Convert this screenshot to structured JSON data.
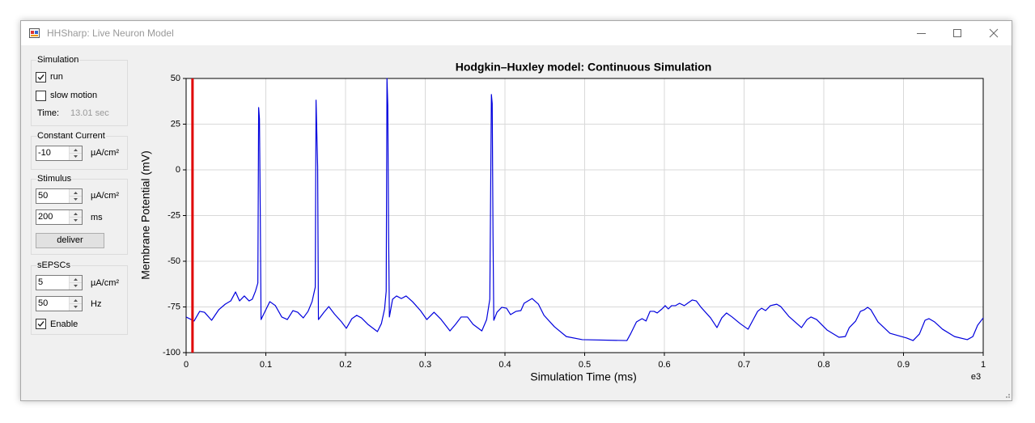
{
  "window": {
    "title": "HHSharp: Live Neuron Model"
  },
  "controls": {
    "simulation": {
      "title": "Simulation",
      "run": {
        "label": "run",
        "checked": true
      },
      "slow_motion": {
        "label": "slow motion",
        "checked": false
      },
      "time_label": "Time:",
      "time_value": "13.01 sec"
    },
    "constant_current": {
      "title": "Constant Current",
      "value": -10,
      "unit": "µA/cm²"
    },
    "stimulus": {
      "title": "Stimulus",
      "amplitude": 50,
      "amplitude_unit": "µA/cm²",
      "duration": 200,
      "duration_unit": "ms",
      "button": "deliver"
    },
    "sepscs": {
      "title": "sEPSCs",
      "amplitude": 5,
      "amplitude_unit": "µA/cm²",
      "rate": 50,
      "rate_unit": "Hz",
      "enable": {
        "label": "Enable",
        "checked": true
      }
    }
  },
  "chart_data": {
    "type": "line",
    "title": "Hodgkin–Huxley model: Continuous Simulation",
    "x_label": "Simulation Time (ms)",
    "y_label": "Membrane Potential (mV)",
    "x_multiplier": "e3",
    "color": "#0000dd",
    "grid": true,
    "cursor": {
      "x": 0.008,
      "color": "#e00000"
    },
    "xlim": [
      0,
      1
    ],
    "ylim": [
      -100,
      50
    ],
    "xticks": [
      0,
      0.1,
      0.2,
      0.3,
      0.4,
      0.5,
      0.6,
      0.7,
      0.8,
      0.9,
      1
    ],
    "yticks": [
      -100,
      -75,
      -50,
      -25,
      0,
      25,
      50
    ],
    "x": [
      0,
      0.01,
      0.017,
      0.023,
      0.032,
      0.041,
      0.049,
      0.056,
      0.062,
      0.067,
      0.073,
      0.079,
      0.083,
      0.087,
      0.09,
      0.091,
      0.092,
      0.093,
      0.094,
      0.098,
      0.105,
      0.112,
      0.12,
      0.127,
      0.134,
      0.14,
      0.147,
      0.153,
      0.158,
      0.162,
      0.163,
      0.165,
      0.166,
      0.173,
      0.179,
      0.186,
      0.195,
      0.201,
      0.208,
      0.214,
      0.22,
      0.228,
      0.24,
      0.245,
      0.249,
      0.251,
      0.252,
      0.253,
      0.254,
      0.255,
      0.259,
      0.264,
      0.27,
      0.276,
      0.284,
      0.294,
      0.302,
      0.311,
      0.32,
      0.331,
      0.338,
      0.345,
      0.353,
      0.36,
      0.371,
      0.377,
      0.381,
      0.383,
      0.384,
      0.385,
      0.386,
      0.39,
      0.396,
      0.402,
      0.407,
      0.414,
      0.42,
      0.424,
      0.429,
      0.434,
      0.442,
      0.449,
      0.462,
      0.477,
      0.497,
      0.553,
      0.558,
      0.565,
      0.572,
      0.577,
      0.582,
      0.587,
      0.591,
      0.597,
      0.601,
      0.605,
      0.609,
      0.614,
      0.619,
      0.625,
      0.629,
      0.635,
      0.64,
      0.646,
      0.658,
      0.666,
      0.672,
      0.678,
      0.685,
      0.695,
      0.705,
      0.711,
      0.717,
      0.722,
      0.727,
      0.733,
      0.737,
      0.741,
      0.746,
      0.756,
      0.772,
      0.779,
      0.784,
      0.791,
      0.804,
      0.819,
      0.827,
      0.832,
      0.84,
      0.846,
      0.851,
      0.855,
      0.859,
      0.868,
      0.883,
      0.904,
      0.912,
      0.92,
      0.927,
      0.932,
      0.939,
      0.949,
      0.964,
      0.98,
      0.987,
      0.993,
      1.0
    ],
    "values": [
      -80.5,
      -82.7,
      -77.4,
      -77.9,
      -82.3,
      -76.5,
      -73.5,
      -71.7,
      -66.8,
      -71.7,
      -69.0,
      -71.7,
      -70.8,
      -66.4,
      -61.9,
      34.1,
      27.9,
      -22.1,
      -81.9,
      -78.3,
      -72.1,
      -74.3,
      -80.5,
      -81.9,
      -77.0,
      -77.9,
      -81.0,
      -77.4,
      -72.1,
      -64.2,
      38.1,
      1.8,
      -81.9,
      -77.9,
      -74.8,
      -78.8,
      -83.2,
      -86.7,
      -81.4,
      -79.6,
      -81.0,
      -84.5,
      -88.5,
      -84.1,
      -76.1,
      -66.4,
      50,
      35.4,
      -33.2,
      -80.5,
      -70.8,
      -69.0,
      -70.4,
      -69.0,
      -72.1,
      -77.0,
      -81.9,
      -77.9,
      -81.9,
      -88.1,
      -84.5,
      -80.5,
      -80.5,
      -84.5,
      -88.1,
      -81.9,
      -70.8,
      41.2,
      36.3,
      -35.4,
      -82.3,
      -77.9,
      -75.2,
      -75.7,
      -79.2,
      -77.4,
      -77.0,
      -73.0,
      -71.7,
      -70.4,
      -73.5,
      -79.6,
      -85.8,
      -91.2,
      -92.9,
      -93.4,
      -89.4,
      -83.2,
      -81.4,
      -82.7,
      -77.4,
      -77.4,
      -78.3,
      -76.1,
      -74.3,
      -76.1,
      -74.3,
      -74.3,
      -73.0,
      -74.3,
      -73.0,
      -71.2,
      -71.7,
      -75.2,
      -81.0,
      -86.3,
      -81.0,
      -78.3,
      -80.5,
      -84.1,
      -87.2,
      -82.3,
      -77.4,
      -75.7,
      -77.0,
      -74.3,
      -73.9,
      -73.5,
      -74.8,
      -80.1,
      -86.3,
      -81.9,
      -80.5,
      -81.9,
      -87.6,
      -91.6,
      -91.2,
      -86.3,
      -82.7,
      -77.4,
      -76.5,
      -75.2,
      -76.5,
      -83.2,
      -89.4,
      -92.0,
      -93.4,
      -89.8,
      -82.3,
      -81.4,
      -83.2,
      -87.2,
      -91.2,
      -92.9,
      -91.2,
      -85.0,
      -81.0
    ]
  }
}
